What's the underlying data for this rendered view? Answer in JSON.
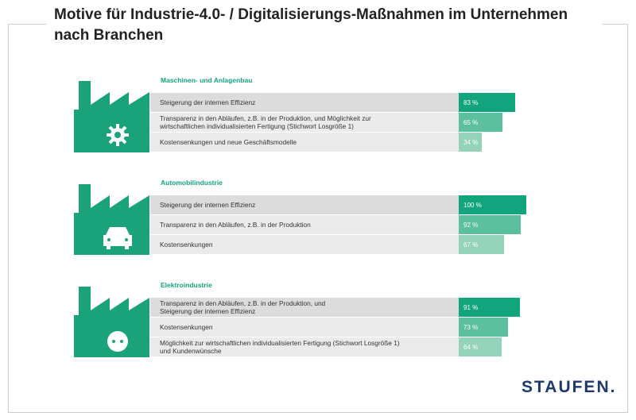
{
  "title": "Motive für Industrie-4.0- / Digitalisierungs-Maßnahmen im Unternehmen nach Branchen",
  "logo": "STAUFEN.",
  "chart_data": [
    {
      "type": "bar",
      "title": "Maschinen- und Anlagenbau",
      "categories": [
        "Steigerung der internen Effizienz",
        "Transparenz in den Abläufen, z.B. in der Produktion, und Möglichkeit zur\nwirtschaftlichen individualisierten Fertigung (Stichwort Losgröße 1)",
        "Kostensenkungen und neue Geschäftsmodelle"
      ],
      "values": [
        83,
        65,
        34
      ],
      "value_labels": [
        "83 %",
        "65 %",
        "34 %"
      ],
      "colors": [
        "#12a47d",
        "#5cbf9e",
        "#92d3ba"
      ]
    },
    {
      "type": "bar",
      "title": "Automobilindustrie",
      "categories": [
        "Steigerung der internen Effizienz",
        "Transparenz in den Abläufen, z.B. in der Produktion",
        "Kostensenkungen"
      ],
      "values": [
        100,
        92,
        67
      ],
      "value_labels": [
        "100 %",
        "92 %",
        "67 %"
      ],
      "colors": [
        "#12a47d",
        "#5cbf9e",
        "#92d3ba"
      ]
    },
    {
      "type": "bar",
      "title": "Elektroindustrie",
      "categories": [
        "Transparenz in den Abläufen, z.B. in der Produktion, und\nSteigerung der internen Effizienz",
        "Kostensenkungen",
        "Möglichkeit zur wirtschaftlichen individualisierten Fertigung (Stichwort Losgröße 1)\nund Kundenwünsche"
      ],
      "values": [
        91,
        73,
        64
      ],
      "value_labels": [
        "91 %",
        "73 %",
        "64 %"
      ],
      "colors": [
        "#12a47d",
        "#5cbf9e",
        "#92d3ba"
      ]
    }
  ]
}
